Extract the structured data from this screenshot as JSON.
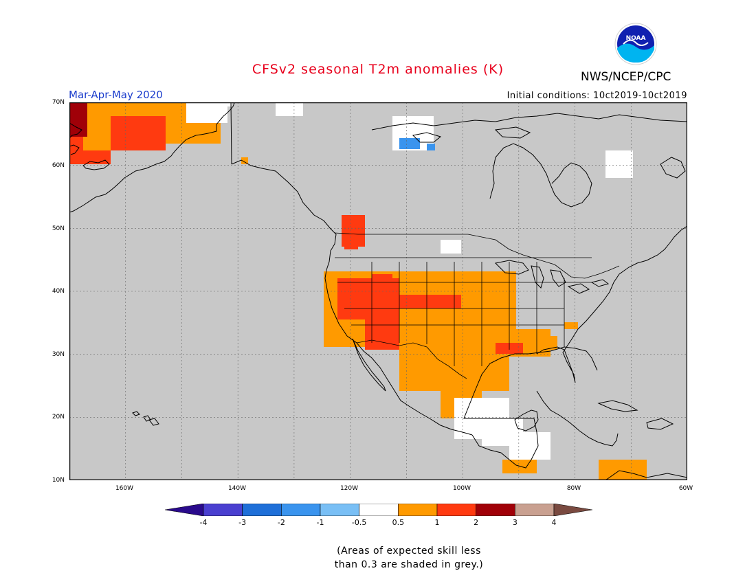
{
  "title": "CFSv2 seasonal T2m anomalies (K)",
  "organization": "NWS/NCEP/CPC",
  "season": "Mar-Apr-May 2020",
  "initial_conditions": "Initial conditions: 10ct2019-10ct2019",
  "logo_text": "NOAA",
  "note_line1": "(Areas of expected skill less",
  "note_line2": "than 0.3 are shaded in grey.)",
  "latitude_labels": [
    "70N",
    "60N",
    "50N",
    "40N",
    "30N",
    "20N",
    "10N"
  ],
  "longitude_labels": [
    "160W",
    "140W",
    "120W",
    "100W",
    "80W",
    "60W"
  ],
  "colorbar": {
    "labels": [
      "-4",
      "-3",
      "-2",
      "-1",
      "-0.5",
      "0.5",
      "1",
      "2",
      "3",
      "4"
    ],
    "colors": [
      "#2a0a8c",
      "#4a3fd0",
      "#1f6fd8",
      "#3a94ee",
      "#79bff5",
      "#ffffff",
      "#ff9a00",
      "#ff3a10",
      "#a00008",
      "#c9a090",
      "#7a4a40"
    ]
  },
  "map": {
    "extent_lon": [
      -170,
      -60
    ],
    "extent_lat": [
      10,
      70
    ],
    "background_color": "#c8c8c8",
    "grid": true
  }
}
